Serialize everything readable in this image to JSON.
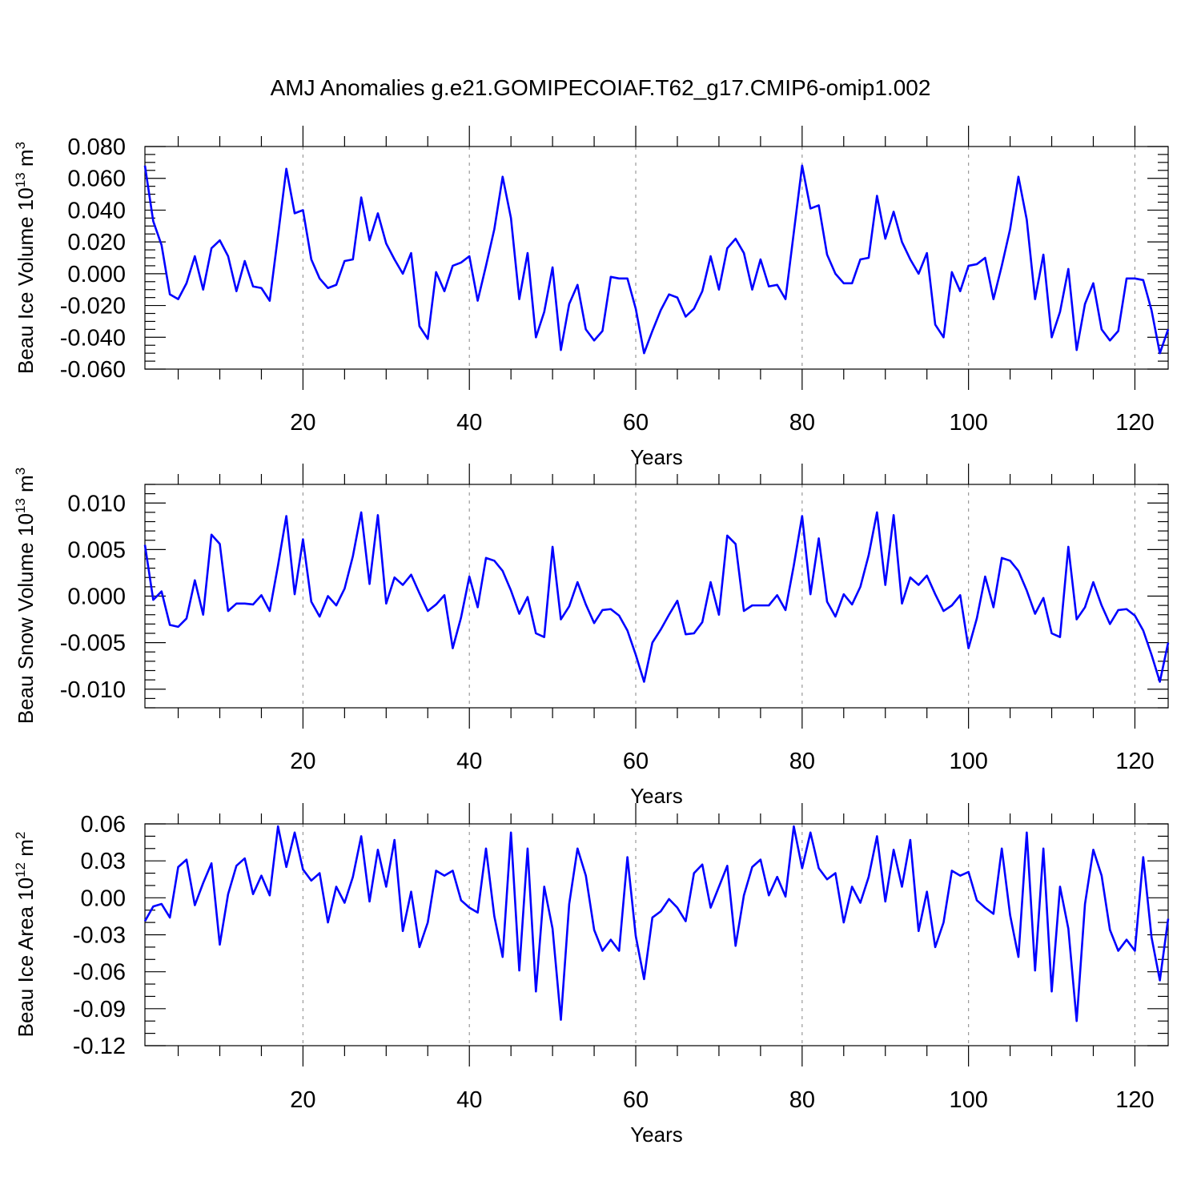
{
  "title": "AMJ Anomalies g.e21.GOMIPECOIAF.T62_g17.CMIP6-omip1.002",
  "colors": {
    "line": "#0000ff",
    "grid": "#999999",
    "frame": "#000000"
  },
  "chart_data": [
    {
      "type": "line",
      "ylabel": "Beau Ice Volume 10",
      "ylabel_exp1": "13",
      "ylabel_mid": " m",
      "ylabel_exp2": "3",
      "xlabel": "Years",
      "xlim": [
        1,
        124
      ],
      "ylim": [
        -0.06,
        0.08
      ],
      "xticks": [
        20,
        40,
        60,
        80,
        100,
        120
      ],
      "xtick_labels": [
        "20",
        "40",
        "60",
        "80",
        "100",
        "120"
      ],
      "yticks": [
        -0.06,
        -0.04,
        -0.02,
        0.0,
        0.02,
        0.04,
        0.06,
        0.08
      ],
      "ytick_labels": [
        "-0.060",
        "-0.040",
        "-0.020",
        "0.000",
        "0.020",
        "0.040",
        "0.060",
        "0.080"
      ],
      "yminor_step": 0.005,
      "grid": "vertical dashed at major x ticks",
      "x_start": 1,
      "values": [
        0.068,
        0.033,
        0.018,
        -0.013,
        -0.016,
        -0.006,
        0.011,
        -0.01,
        0.016,
        0.021,
        0.011,
        -0.011,
        0.008,
        -0.008,
        -0.009,
        -0.017,
        0.024,
        0.066,
        0.038,
        0.04,
        0.009,
        -0.003,
        -0.009,
        -0.007,
        0.008,
        0.009,
        0.048,
        0.021,
        0.038,
        0.019,
        0.009,
        0.0,
        0.013,
        -0.033,
        -0.041,
        0.001,
        -0.011,
        0.005,
        0.007,
        0.011,
        -0.017,
        0.005,
        0.028,
        0.061,
        0.035,
        -0.016,
        0.013,
        -0.04,
        -0.024,
        0.004,
        -0.048,
        -0.019,
        -0.007,
        -0.035,
        -0.042,
        -0.036,
        -0.002,
        -0.003,
        -0.003,
        -0.022,
        -0.05,
        -0.036,
        -0.023,
        -0.013,
        -0.015,
        -0.027,
        -0.022,
        -0.011,
        0.011,
        -0.01,
        0.016,
        0.022,
        0.013,
        -0.01,
        0.009,
        -0.008,
        -0.007,
        -0.016,
        0.026,
        0.068,
        0.041,
        0.043,
        0.012,
        0.0,
        -0.006,
        -0.006,
        0.009,
        0.01,
        0.049,
        0.022,
        0.039,
        0.02,
        0.009,
        0.0,
        0.013,
        -0.032,
        -0.04,
        0.001,
        -0.011,
        0.005,
        0.006,
        0.01,
        -0.016,
        0.005,
        0.028,
        0.061,
        0.034,
        -0.016,
        0.012,
        -0.04,
        -0.024,
        0.003,
        -0.048,
        -0.019,
        -0.006,
        -0.035,
        -0.042,
        -0.036,
        -0.003,
        -0.003,
        -0.004,
        -0.023,
        -0.05,
        -0.035
      ]
    },
    {
      "type": "line",
      "ylabel": "Beau Snow Volume 10",
      "ylabel_exp1": "13",
      "ylabel_mid": " m",
      "ylabel_exp2": "3",
      "xlabel": "Years",
      "xlim": [
        1,
        124
      ],
      "ylim": [
        -0.012,
        0.012
      ],
      "xticks": [
        20,
        40,
        60,
        80,
        100,
        120
      ],
      "xtick_labels": [
        "20",
        "40",
        "60",
        "80",
        "100",
        "120"
      ],
      "yticks": [
        -0.01,
        -0.005,
        0.0,
        0.005,
        0.01
      ],
      "ytick_labels": [
        "-0.010",
        "-0.005",
        "0.000",
        "0.005",
        "0.010"
      ],
      "yminor_step": 0.001,
      "grid": "vertical dashed at major x ticks",
      "x_start": 1,
      "values": [
        0.0055,
        -0.0004,
        0.0005,
        -0.0031,
        -0.0033,
        -0.0024,
        0.0017,
        -0.002,
        0.0066,
        0.0056,
        -0.0016,
        -0.0008,
        -0.0008,
        -0.0009,
        0.0001,
        -0.0016,
        0.0033,
        0.0086,
        0.0002,
        0.0061,
        -0.0006,
        -0.0022,
        0.0,
        -0.001,
        0.0008,
        0.0043,
        0.009,
        0.0013,
        0.0087,
        -0.0008,
        0.002,
        0.0012,
        0.0023,
        0.0003,
        -0.0016,
        -0.0009,
        0.0001,
        -0.0056,
        -0.0023,
        0.0021,
        -0.0012,
        0.0041,
        0.0038,
        0.0027,
        0.0006,
        -0.0019,
        -0.0001,
        -0.004,
        -0.0044,
        0.0053,
        -0.0025,
        -0.0011,
        0.0015,
        -0.0009,
        -0.0029,
        -0.0015,
        -0.0014,
        -0.0021,
        -0.0037,
        -0.0063,
        -0.0092,
        -0.005,
        -0.0036,
        -0.002,
        -0.0005,
        -0.0041,
        -0.004,
        -0.0028,
        0.0015,
        -0.002,
        0.0065,
        0.0056,
        -0.0016,
        -0.001,
        -0.001,
        -0.001,
        0.0001,
        -0.0015,
        0.0033,
        0.0086,
        0.0002,
        0.0062,
        -0.0006,
        -0.0022,
        0.0002,
        -0.0009,
        0.001,
        0.0044,
        0.009,
        0.0012,
        0.0087,
        -0.0008,
        0.002,
        0.0012,
        0.0022,
        0.0002,
        -0.0016,
        -0.001,
        0.0001,
        -0.0056,
        -0.0024,
        0.0021,
        -0.0012,
        0.0041,
        0.0038,
        0.0027,
        0.0006,
        -0.0019,
        -0.0002,
        -0.004,
        -0.0044,
        0.0053,
        -0.0025,
        -0.0012,
        0.0015,
        -0.001,
        -0.003,
        -0.0015,
        -0.0014,
        -0.0021,
        -0.0037,
        -0.0063,
        -0.0092,
        -0.005
      ]
    },
    {
      "type": "line",
      "ylabel": "Beau Ice Area 10",
      "ylabel_exp1": "12",
      "ylabel_mid": " m",
      "ylabel_exp2": "2",
      "xlabel": "Years",
      "xlim": [
        1,
        124
      ],
      "ylim": [
        -0.12,
        0.06
      ],
      "xticks": [
        20,
        40,
        60,
        80,
        100,
        120
      ],
      "xtick_labels": [
        "20",
        "40",
        "60",
        "80",
        "100",
        "120"
      ],
      "yticks": [
        -0.12,
        -0.09,
        -0.06,
        -0.03,
        0.0,
        0.03,
        0.06
      ],
      "ytick_labels": [
        "-0.12",
        "-0.09",
        "-0.06",
        "-0.03",
        "0.00",
        "0.03",
        "0.06"
      ],
      "yminor_step": 0.01,
      "grid": "vertical dashed at major x ticks",
      "x_start": 1,
      "values": [
        -0.019,
        -0.007,
        -0.005,
        -0.016,
        0.025,
        0.031,
        -0.006,
        0.012,
        0.028,
        -0.038,
        0.003,
        0.026,
        0.032,
        0.003,
        0.018,
        0.002,
        0.058,
        0.025,
        0.053,
        0.023,
        0.014,
        0.02,
        -0.02,
        0.009,
        -0.004,
        0.017,
        0.05,
        -0.003,
        0.039,
        0.009,
        0.047,
        -0.027,
        0.005,
        -0.04,
        -0.02,
        0.022,
        0.018,
        0.022,
        -0.002,
        -0.008,
        -0.012,
        0.04,
        -0.015,
        -0.048,
        0.053,
        -0.059,
        0.04,
        -0.076,
        0.009,
        -0.025,
        -0.099,
        -0.005,
        0.04,
        0.018,
        -0.026,
        -0.043,
        -0.034,
        -0.043,
        0.033,
        -0.031,
        -0.066,
        -0.016,
        -0.011,
        -0.001,
        -0.008,
        -0.019,
        0.02,
        0.027,
        -0.008,
        0.009,
        0.026,
        -0.039,
        0.002,
        0.025,
        0.031,
        0.002,
        0.017,
        0.001,
        0.058,
        0.024,
        0.053,
        0.024,
        0.015,
        0.02,
        -0.02,
        0.009,
        -0.004,
        0.017,
        0.05,
        -0.003,
        0.039,
        0.009,
        0.047,
        -0.027,
        0.005,
        -0.04,
        -0.02,
        0.022,
        0.018,
        0.021,
        -0.002,
        -0.008,
        -0.013,
        0.04,
        -0.014,
        -0.048,
        0.053,
        -0.059,
        0.04,
        -0.076,
        0.009,
        -0.025,
        -0.1,
        -0.005,
        0.039,
        0.018,
        -0.026,
        -0.043,
        -0.034,
        -0.043,
        0.033,
        -0.032,
        -0.067,
        -0.017
      ]
    }
  ]
}
